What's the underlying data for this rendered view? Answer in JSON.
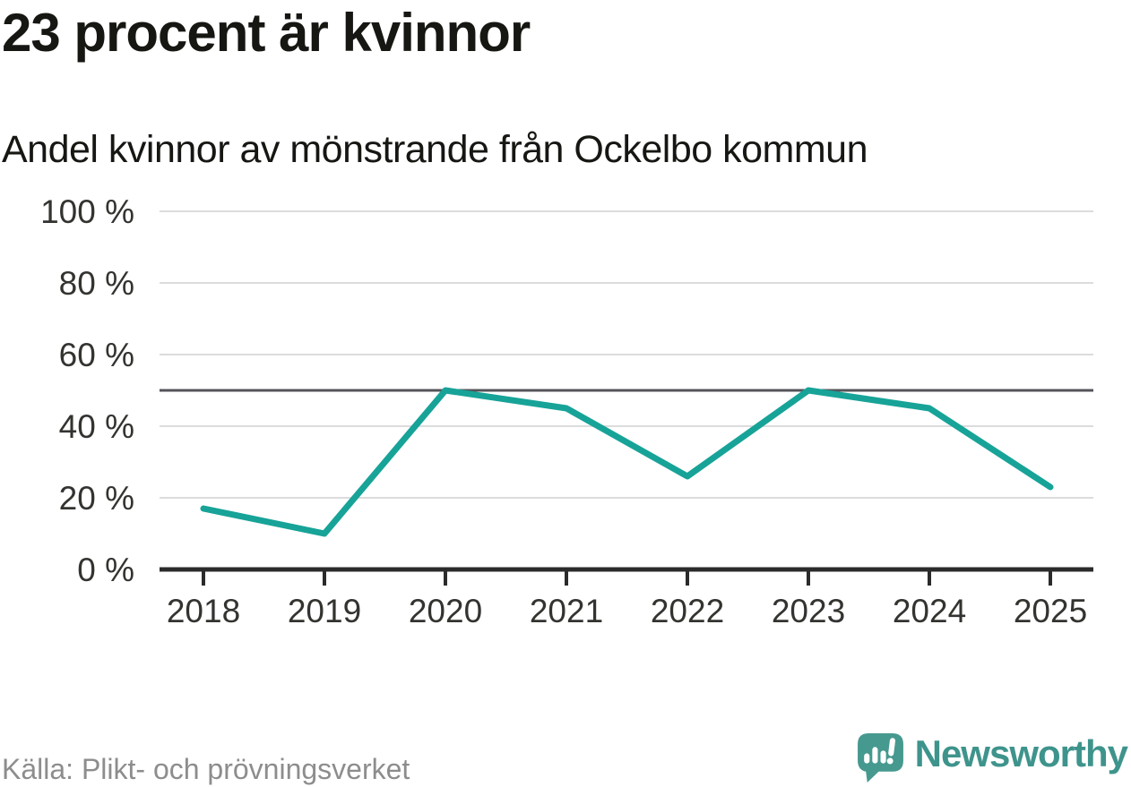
{
  "chart": {
    "title": "23 procent är kvinnor",
    "subtitle": "Andel kvinnor av mönstrande från Ockelbo kommun"
  },
  "chart_data": {
    "type": "line",
    "x": [
      2018,
      2019,
      2020,
      2021,
      2022,
      2023,
      2024,
      2025
    ],
    "values": [
      17,
      10,
      50,
      45,
      26,
      50,
      45,
      23
    ],
    "unit": "%",
    "ylim": [
      0,
      100
    ],
    "yticks": [
      0,
      20,
      40,
      60,
      80,
      100
    ],
    "ytick_suffix": " %",
    "reference_line": 50,
    "grid": "horizontal",
    "legend": "none"
  },
  "footer": {
    "source": "Källa: Plikt- och prövningsverket",
    "brand": "Newsworthy"
  },
  "colors": {
    "line": "#17a398",
    "grid": "#dcdcdc",
    "reference_line": "#54545a",
    "axis": "#2b2b2b",
    "tick_label": "#333330",
    "title": "#161613",
    "muted": "#8d8d8d",
    "brand": "#3e948c",
    "logo": "#46998f"
  }
}
